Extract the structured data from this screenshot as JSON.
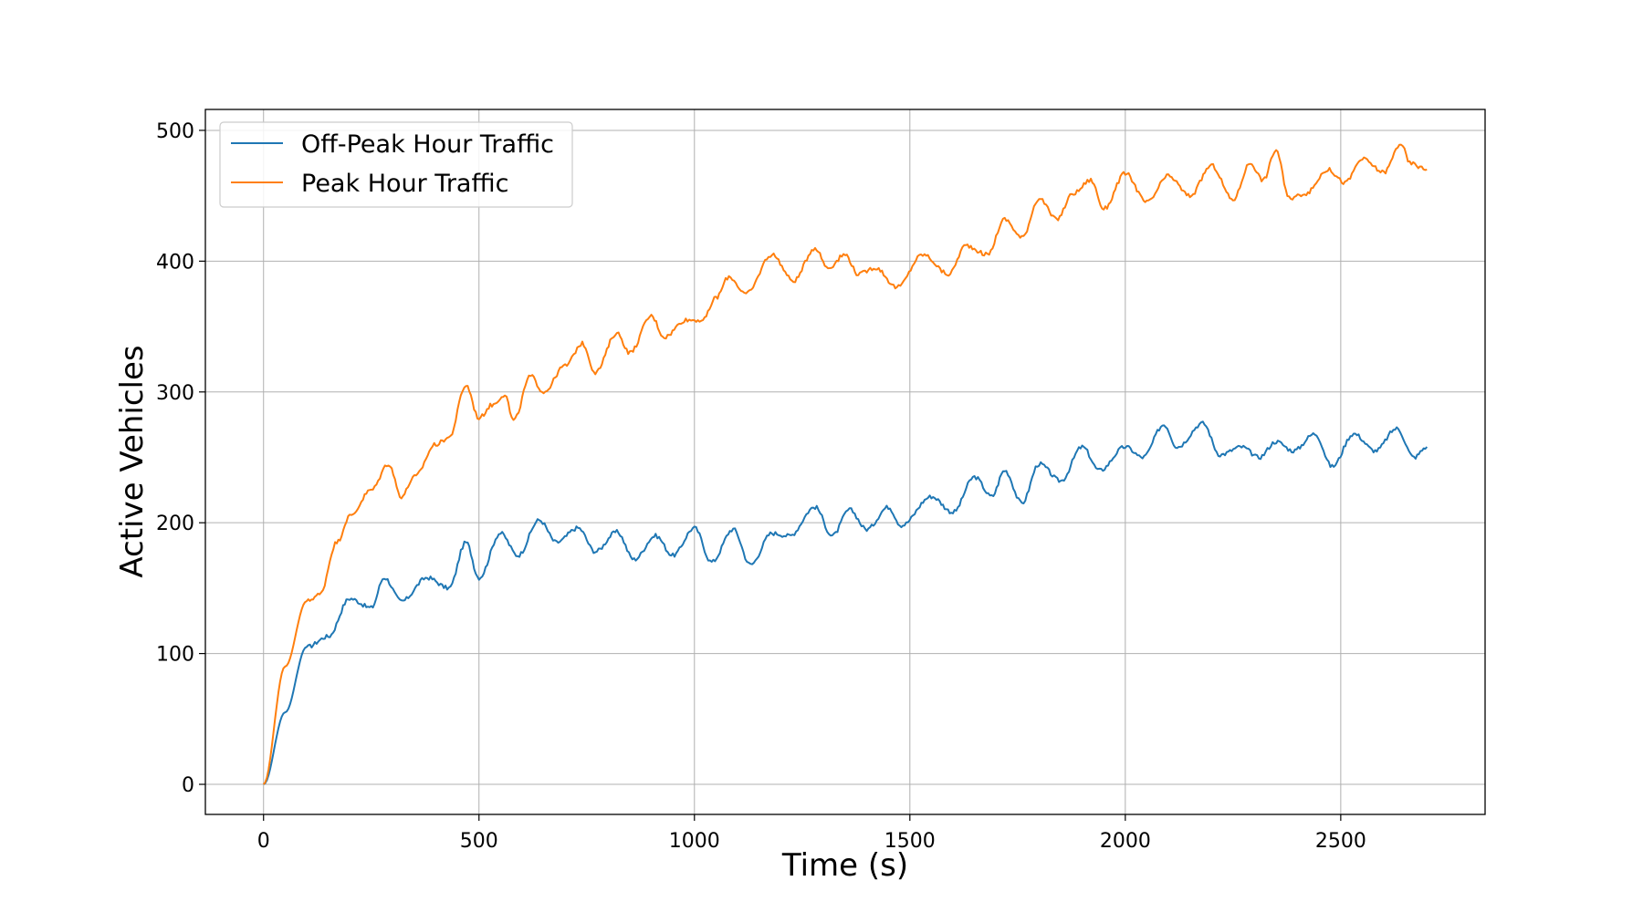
{
  "chart_data": {
    "type": "line",
    "xlabel": "Time (s)",
    "ylabel": "Active Vehicles",
    "xlim": [
      -135,
      2835
    ],
    "ylim": [
      -23,
      516
    ],
    "x_ticks": [
      0,
      500,
      1000,
      1500,
      2000,
      2500
    ],
    "y_ticks": [
      0,
      100,
      200,
      300,
      400,
      500
    ],
    "grid": true,
    "legend_position": "top-left",
    "series": [
      {
        "name": "Off-Peak Hour Traffic",
        "color": "#1f77b4",
        "x": [
          0,
          50,
          100,
          150,
          200,
          250,
          280,
          320,
          380,
          430,
          470,
          500,
          550,
          590,
          640,
          680,
          730,
          770,
          820,
          860,
          910,
          950,
          1000,
          1040,
          1090,
          1130,
          1180,
          1220,
          1280,
          1320,
          1360,
          1400,
          1450,
          1480,
          1550,
          1600,
          1650,
          1690,
          1720,
          1760,
          1800,
          1850,
          1900,
          1940,
          2000,
          2040,
          2090,
          2120,
          2180,
          2220,
          2270,
          2310,
          2350,
          2390,
          2440,
          2480,
          2530,
          2580,
          2630,
          2670,
          2700
        ],
        "y": [
          0,
          55,
          105,
          113,
          142,
          135,
          158,
          140,
          158,
          150,
          185,
          158,
          192,
          175,
          202,
          185,
          196,
          178,
          193,
          172,
          190,
          175,
          196,
          170,
          195,
          168,
          192,
          190,
          212,
          190,
          210,
          195,
          212,
          198,
          220,
          208,
          235,
          220,
          240,
          215,
          245,
          232,
          258,
          240,
          258,
          250,
          275,
          258,
          276,
          252,
          258,
          250,
          262,
          255,
          268,
          243,
          268,
          255,
          272,
          250,
          258
        ]
      },
      {
        "name": "Peak Hour Traffic",
        "color": "#ff7f0e",
        "x": [
          0,
          50,
          100,
          130,
          170,
          200,
          250,
          290,
          320,
          350,
          400,
          430,
          470,
          500,
          530,
          560,
          580,
          620,
          650,
          700,
          740,
          770,
          820,
          850,
          900,
          930,
          980,
          1020,
          1050,
          1080,
          1120,
          1180,
          1230,
          1280,
          1310,
          1350,
          1380,
          1420,
          1470,
          1530,
          1590,
          1630,
          1680,
          1720,
          1760,
          1800,
          1840,
          1880,
          1920,
          1950,
          2000,
          2050,
          2100,
          2150,
          2200,
          2250,
          2290,
          2320,
          2350,
          2380,
          2420,
          2470,
          2510,
          2550,
          2600,
          2640,
          2660,
          2700
        ],
        "y": [
          0,
          90,
          140,
          145,
          185,
          205,
          225,
          245,
          220,
          235,
          260,
          265,
          305,
          280,
          290,
          298,
          278,
          312,
          300,
          320,
          337,
          315,
          345,
          330,
          358,
          342,
          355,
          355,
          372,
          388,
          375,
          405,
          385,
          410,
          395,
          405,
          390,
          395,
          380,
          405,
          390,
          412,
          405,
          432,
          418,
          448,
          432,
          452,
          462,
          440,
          467,
          445,
          465,
          450,
          473,
          447,
          475,
          462,
          485,
          448,
          452,
          470,
          460,
          478,
          468,
          490,
          475,
          470
        ]
      }
    ]
  }
}
